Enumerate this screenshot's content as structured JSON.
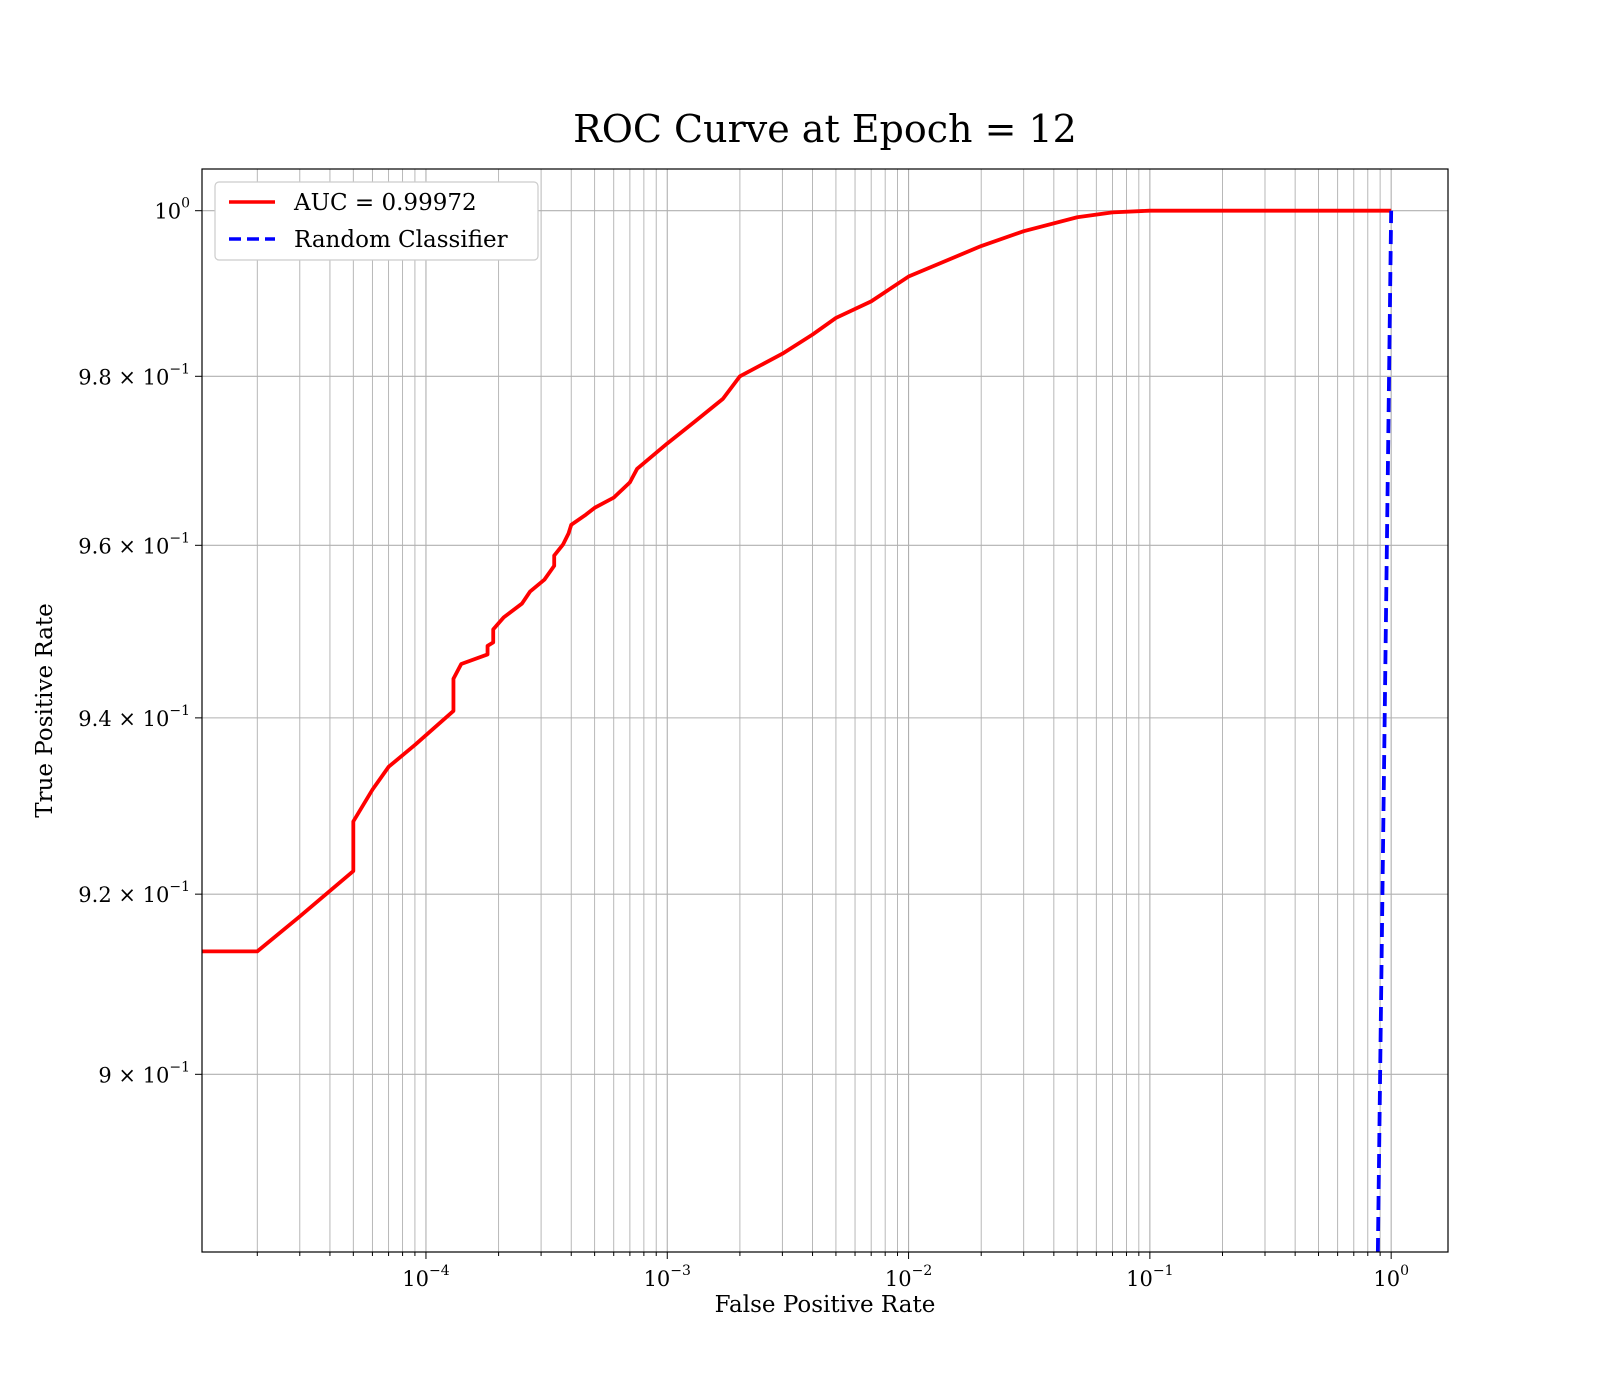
{
  "chart_data": {
    "type": "line",
    "title": "ROC Curve at Epoch = 12",
    "xlabel": "False Positive Rate",
    "ylabel": "True Positive Rate",
    "xscale": "log",
    "yscale": "log",
    "xlim": [
      1.18e-05,
      1.72
    ],
    "ylim": [
      0.8807,
      1.0051
    ],
    "grid": true,
    "legend_position": "top-left",
    "x_ticks": [
      {
        "value": 0.0001,
        "base": "10",
        "exp": "−4"
      },
      {
        "value": 0.001,
        "base": "10",
        "exp": "−3"
      },
      {
        "value": 0.01,
        "base": "10",
        "exp": "−2"
      },
      {
        "value": 0.1,
        "base": "10",
        "exp": "−1"
      },
      {
        "value": 1,
        "base": "10",
        "exp": "0"
      }
    ],
    "y_ticks": [
      {
        "value": 0.9,
        "base": "9 × 10",
        "exp": "−1"
      },
      {
        "value": 0.92,
        "base": "9.2 × 10",
        "exp": "−1"
      },
      {
        "value": 0.94,
        "base": "9.4 × 10",
        "exp": "−1"
      },
      {
        "value": 0.96,
        "base": "9.6 × 10",
        "exp": "−1"
      },
      {
        "value": 0.98,
        "base": "9.8 × 10",
        "exp": "−1"
      },
      {
        "value": 1.0,
        "base": "10",
        "exp": "0"
      }
    ],
    "series": [
      {
        "name": "AUC = 0.99972",
        "color": "#ff0000",
        "style": "solid",
        "points": [
          [
            1.18e-05,
            0.9136
          ],
          [
            2e-05,
            0.9136
          ],
          [
            3e-05,
            0.9175
          ],
          [
            5e-05,
            0.9226
          ],
          [
            5e-05,
            0.9282
          ],
          [
            6e-05,
            0.9318
          ],
          [
            7e-05,
            0.9344
          ],
          [
            9e-05,
            0.9369
          ],
          [
            0.00013,
            0.9408
          ],
          [
            0.00013,
            0.9445
          ],
          [
            0.00014,
            0.9462
          ],
          [
            0.00018,
            0.9473
          ],
          [
            0.00018,
            0.9483
          ],
          [
            0.00019,
            0.9487
          ],
          [
            0.00019,
            0.9502
          ],
          [
            0.00021,
            0.9516
          ],
          [
            0.00025,
            0.9532
          ],
          [
            0.00027,
            0.9546
          ],
          [
            0.00031,
            0.956
          ],
          [
            0.00034,
            0.9576
          ],
          [
            0.00034,
            0.9588
          ],
          [
            0.00037,
            0.9601
          ],
          [
            0.00039,
            0.9614
          ],
          [
            0.0004,
            0.9624
          ],
          [
            0.00046,
            0.9636
          ],
          [
            0.0005,
            0.9644
          ],
          [
            0.0006,
            0.9656
          ],
          [
            0.0007,
            0.9674
          ],
          [
            0.00075,
            0.969
          ],
          [
            0.001,
            0.972
          ],
          [
            0.0013,
            0.9746
          ],
          [
            0.0017,
            0.9773
          ],
          [
            0.002,
            0.98
          ],
          [
            0.003,
            0.9827
          ],
          [
            0.004,
            0.985
          ],
          [
            0.005,
            0.987
          ],
          [
            0.007,
            0.989
          ],
          [
            0.01,
            0.992
          ],
          [
            0.02,
            0.9957
          ],
          [
            0.03,
            0.9975
          ],
          [
            0.05,
            0.9992
          ],
          [
            0.07,
            0.9998
          ],
          [
            0.1,
            1.0
          ],
          [
            1.0,
            1.0
          ]
        ]
      },
      {
        "name": "Random Classifier",
        "color": "#0000ff",
        "style": "dashed",
        "points": [
          [
            0.8807,
            0.8807
          ],
          [
            1.0,
            1.0
          ]
        ]
      }
    ]
  }
}
